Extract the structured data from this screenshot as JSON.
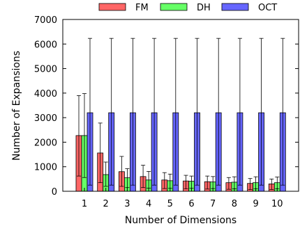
{
  "colors": {
    "FM": "#ff6666",
    "DH": "#66ff66",
    "OCT": "#6666ff"
  },
  "chart_data": {
    "type": "bar",
    "title": "",
    "xlabel": "Number of Dimensions",
    "ylabel": "Number of Expansions",
    "categories": [
      "1",
      "2",
      "3",
      "4",
      "5",
      "6",
      "7",
      "8",
      "9",
      "10"
    ],
    "ylim": [
      0,
      7000
    ],
    "yticks": [
      0,
      1000,
      2000,
      3000,
      4000,
      5000,
      6000,
      7000
    ],
    "ytick_labels": [
      "0",
      "1000",
      "2000",
      "3000",
      "4000",
      "5000",
      "6000",
      "7000"
    ],
    "legend_position": "top",
    "grid": false,
    "series": [
      {
        "name": "FM",
        "values": [
          2270,
          1560,
          800,
          600,
          460,
          420,
          390,
          350,
          320,
          300
        ],
        "err_low": [
          620,
          350,
          200,
          150,
          110,
          100,
          90,
          80,
          70,
          70
        ],
        "err_high": [
          3900,
          2780,
          1420,
          1060,
          760,
          650,
          620,
          560,
          520,
          500
        ]
      },
      {
        "name": "DH",
        "values": [
          2270,
          680,
          550,
          460,
          430,
          410,
          380,
          370,
          350,
          350
        ],
        "err_low": [
          560,
          200,
          150,
          130,
          120,
          120,
          110,
          100,
          100,
          100
        ],
        "err_high": [
          3980,
          1190,
          920,
          810,
          700,
          620,
          600,
          590,
          590,
          580
        ]
      },
      {
        "name": "OCT",
        "values": [
          3200,
          3200,
          3200,
          3200,
          3200,
          3200,
          3200,
          3200,
          3200,
          3200
        ],
        "err_low": [
          250,
          250,
          250,
          250,
          250,
          250,
          250,
          250,
          250,
          250
        ],
        "err_high": [
          6230,
          6230,
          6230,
          6230,
          6230,
          6230,
          6230,
          6230,
          6230,
          6230
        ]
      }
    ]
  }
}
